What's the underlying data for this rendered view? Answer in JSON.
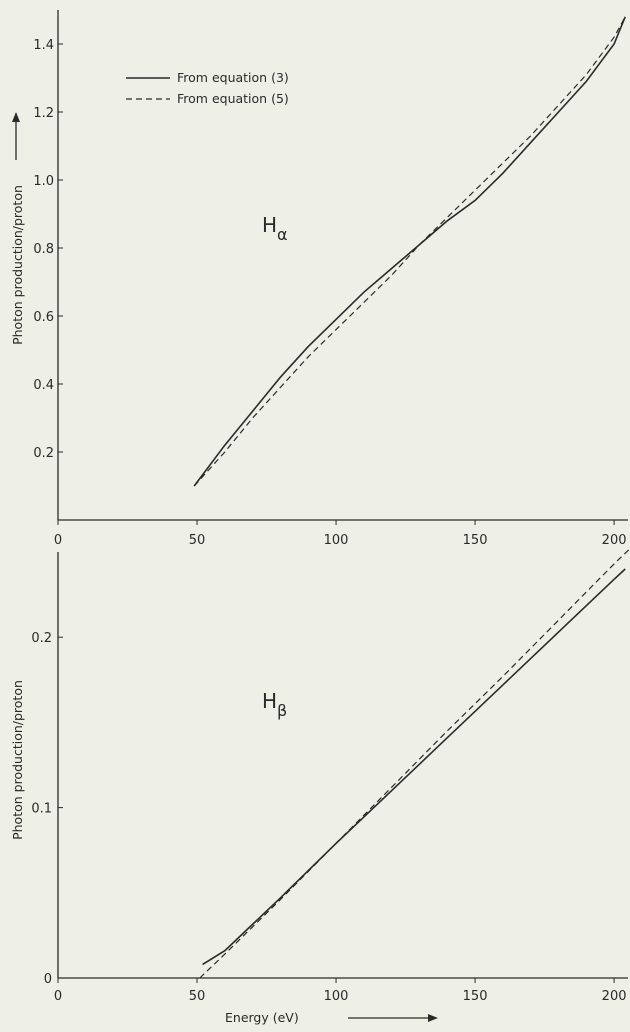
{
  "chart_data": [
    {
      "type": "line",
      "annotation": {
        "main": "H",
        "sub": "α"
      },
      "ylabel": "Photon production/proton",
      "xlabel": "",
      "xlim": [
        0,
        205
      ],
      "ylim": [
        0,
        1.5
      ],
      "xticks": [
        0,
        50,
        100,
        150,
        200
      ],
      "yticks": [
        0.2,
        0.4,
        0.6,
        0.8,
        1.0,
        1.2,
        1.4
      ],
      "ytick_labels": [
        "0.2",
        "0.4",
        "0.6",
        "0.8",
        "1.0",
        "1.2",
        "1.4"
      ],
      "legend": [
        "From equation (3)",
        "From equation (5)"
      ],
      "legend_position": "top-left",
      "series": [
        {
          "name": "From equation (3)",
          "style": "solid",
          "x": [
            49,
            60,
            70,
            80,
            90,
            100,
            110,
            120,
            130,
            140,
            150,
            160,
            170,
            180,
            190,
            200,
            204
          ],
          "y": [
            0.1,
            0.22,
            0.32,
            0.42,
            0.51,
            0.59,
            0.67,
            0.74,
            0.81,
            0.88,
            0.94,
            1.02,
            1.11,
            1.2,
            1.29,
            1.4,
            1.48
          ]
        },
        {
          "name": "From equation (5)",
          "style": "dashed",
          "x": [
            49,
            60,
            70,
            80,
            90,
            100,
            110,
            120,
            130,
            140,
            150,
            160,
            170,
            180,
            190,
            200,
            204
          ],
          "y": [
            0.1,
            0.2,
            0.3,
            0.39,
            0.48,
            0.56,
            0.64,
            0.72,
            0.81,
            0.89,
            0.97,
            1.05,
            1.13,
            1.22,
            1.31,
            1.42,
            1.48
          ]
        }
      ]
    },
    {
      "type": "line",
      "annotation": {
        "main": "H",
        "sub": "β"
      },
      "ylabel": "Photon production/proton",
      "xlabel": "Energy (eV)",
      "xlim": [
        0,
        205
      ],
      "ylim": [
        0,
        0.25
      ],
      "xticks": [
        0,
        50,
        100,
        150,
        200
      ],
      "yticks": [
        0,
        0.1,
        0.2
      ],
      "ytick_labels": [
        "0",
        "0.1",
        "0.2"
      ],
      "series": [
        {
          "name": "From equation (3)",
          "style": "solid",
          "x": [
            52,
            60,
            80,
            100,
            120,
            140,
            160,
            180,
            200,
            204
          ],
          "y": [
            0.008,
            0.016,
            0.047,
            0.079,
            0.11,
            0.141,
            0.172,
            0.203,
            0.234,
            0.24
          ]
        },
        {
          "name": "From equation (5)",
          "style": "dashed",
          "x": [
            51,
            60,
            80,
            100,
            120,
            140,
            160,
            180,
            200,
            207
          ],
          "y": [
            0.0,
            0.014,
            0.046,
            0.079,
            0.112,
            0.145,
            0.177,
            0.21,
            0.243,
            0.254
          ]
        }
      ]
    }
  ]
}
